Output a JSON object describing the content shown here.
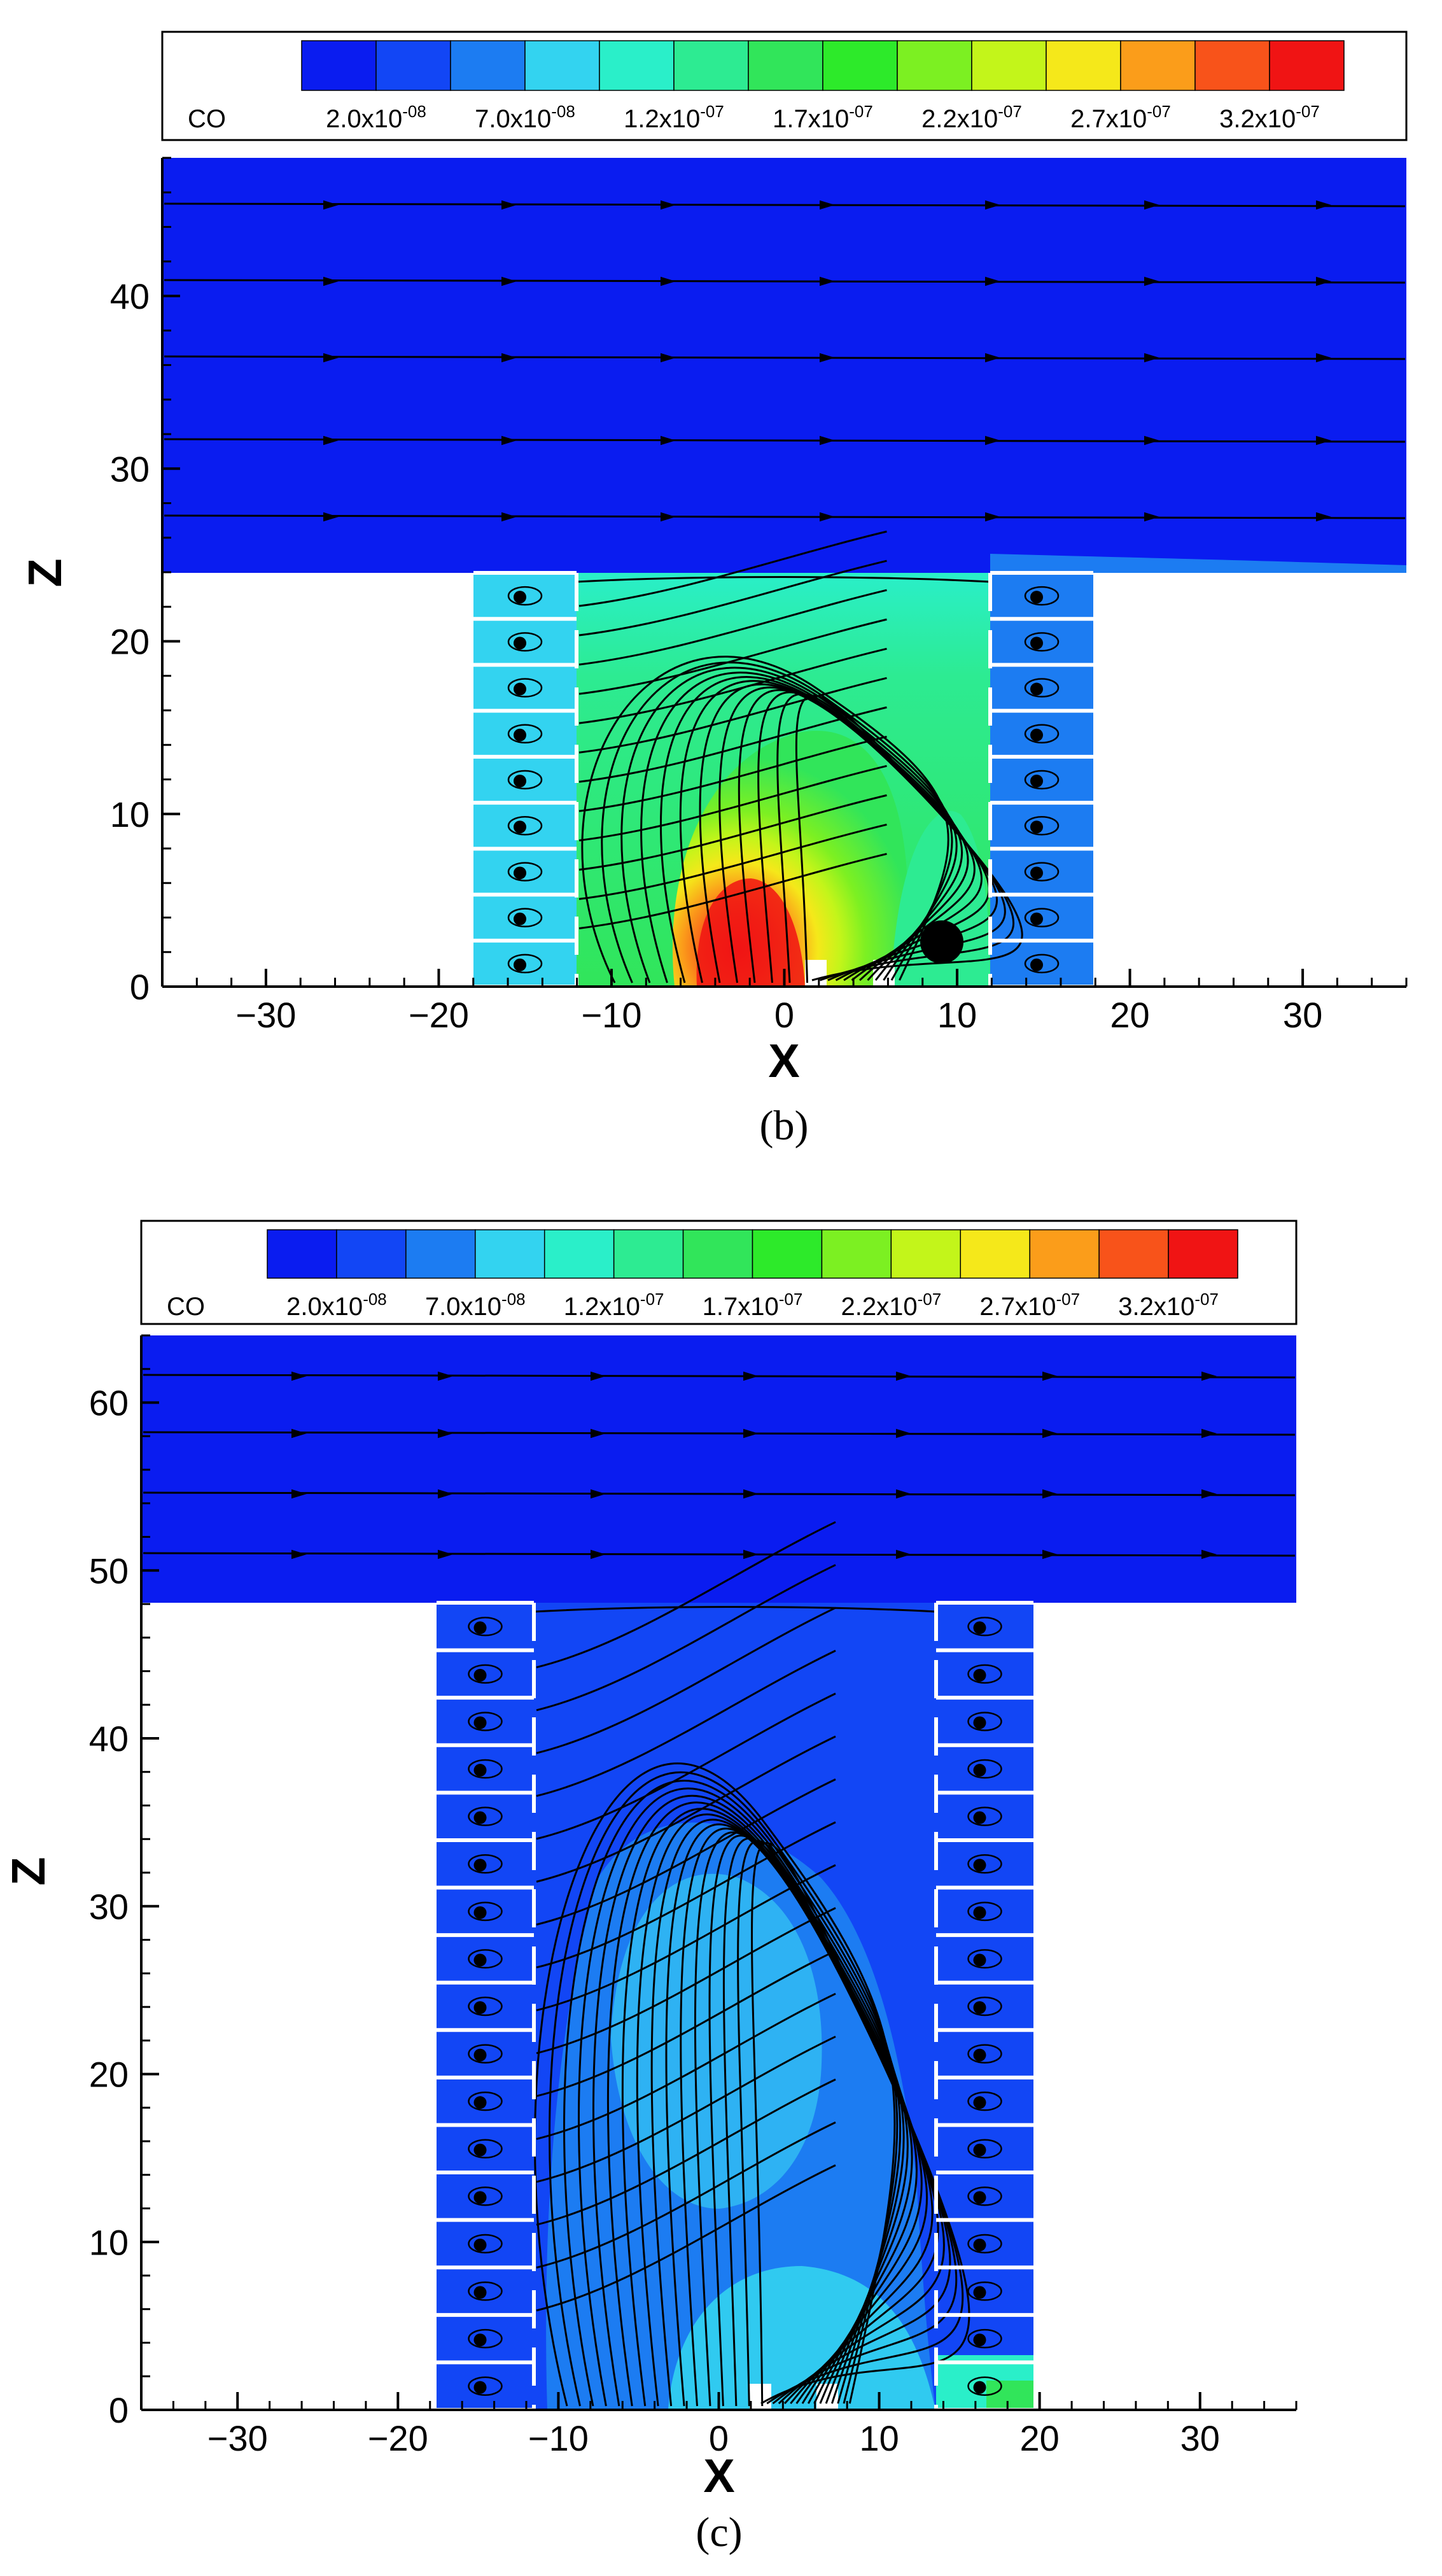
{
  "legend": {
    "variable": "CO",
    "colors": [
      "#0a1cf0",
      "#1246f5",
      "#1c7cf2",
      "#33d3f0",
      "#2aefc9",
      "#2deb92",
      "#31e55a",
      "#2dea2a",
      "#7cf022",
      "#c3f51a",
      "#f5e81a",
      "#fb9d1a",
      "#f8531a",
      "#f01414"
    ],
    "labels": [
      {
        "mant": "2.0x10",
        "exp": "-08"
      },
      {
        "mant": "7.0x10",
        "exp": "-08"
      },
      {
        "mant": "1.2x10",
        "exp": "-07"
      },
      {
        "mant": "1.7x10",
        "exp": "-07"
      },
      {
        "mant": "2.2x10",
        "exp": "-07"
      },
      {
        "mant": "2.7x10",
        "exp": "-07"
      },
      {
        "mant": "3.2x10",
        "exp": "-07"
      }
    ]
  },
  "chart_data": [
    {
      "type": "contour",
      "caption": "(b)",
      "xlabel": "X",
      "ylabel": "Z",
      "xlim": [
        -36,
        36
      ],
      "ylim": [
        0,
        48
      ],
      "xticks": [
        -30,
        -20,
        -10,
        0,
        10,
        20,
        30
      ],
      "yticks": [
        0,
        10,
        20,
        30,
        40
      ],
      "variable": "CO",
      "street_canyon": {
        "x_range": [
          -12,
          12
        ],
        "height": 24
      },
      "buildings": [
        {
          "x_range": [
            -18,
            -12
          ],
          "height": 24
        },
        {
          "x_range": [
            12,
            18
          ],
          "height": 24
        }
      ],
      "max_region": {
        "x": [
          -5,
          0
        ],
        "z": [
          0,
          8
        ]
      }
    },
    {
      "type": "contour",
      "caption": "(c)",
      "xlabel": "X",
      "ylabel": "Z",
      "xlim": [
        -36,
        36
      ],
      "ylim": [
        0,
        64
      ],
      "xticks": [
        -30,
        -20,
        -10,
        0,
        10,
        20,
        30
      ],
      "yticks": [
        0,
        10,
        20,
        30,
        40,
        50,
        60
      ],
      "variable": "CO",
      "street_canyon": {
        "x_range": [
          -12,
          12
        ],
        "height": 48
      },
      "buildings": [
        {
          "x_range": [
            -18,
            -12
          ],
          "height": 48
        },
        {
          "x_range": [
            12,
            18
          ],
          "height": 48
        }
      ],
      "max_region": {
        "x": [
          -5,
          5
        ],
        "z": [
          15,
          35
        ]
      }
    }
  ]
}
